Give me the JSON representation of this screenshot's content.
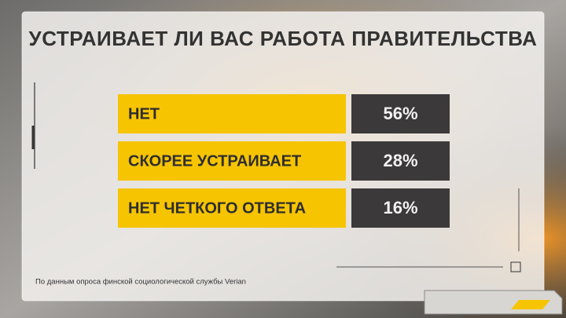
{
  "chart_data": {
    "type": "table",
    "title": "УСТРАИВАЕТ ЛИ ВАС РАБОТА ПРАВИТЕЛЬСТВА",
    "categories": [
      "НЕТ",
      "СКОРЕЕ УСТРАИВАЕТ",
      "НЕТ ЧЕТКОГО ОТВЕТА"
    ],
    "values": [
      56,
      28,
      16
    ],
    "value_labels": [
      "56%",
      "28%",
      "16%"
    ],
    "label_color": "#f6c400",
    "value_color": "#3b3939",
    "source": "По данным опроса финской социологической службы Verian"
  }
}
